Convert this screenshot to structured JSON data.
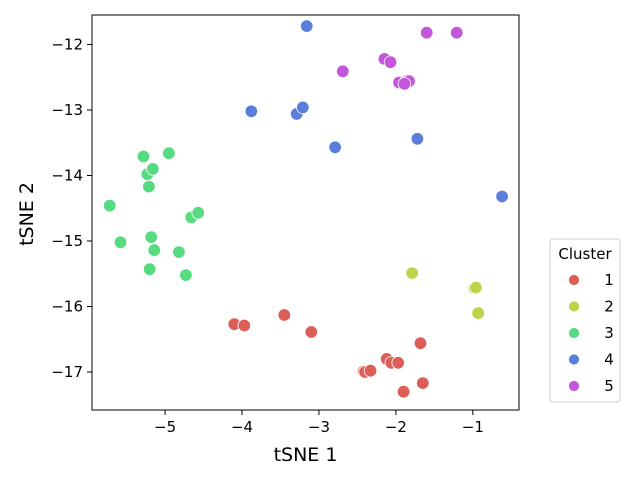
{
  "chart_data": {
    "type": "scatter",
    "xlabel": "tSNE 1",
    "ylabel": "tSNE 2",
    "xlim": [
      -5.95,
      -0.4
    ],
    "ylim": [
      -17.58,
      -11.55
    ],
    "xticks": [
      -5,
      -4,
      -3,
      -2,
      -1
    ],
    "yticks": [
      -12,
      -13,
      -14,
      -15,
      -16,
      -17
    ],
    "grid": false,
    "legend": {
      "title": "Cluster",
      "placement": "outside-right-bottom"
    },
    "series": [
      {
        "name": "1",
        "color": "#db5f57",
        "points": [
          [
            -4.1,
            -16.27
          ],
          [
            -3.97,
            -16.29
          ],
          [
            -3.45,
            -16.13
          ],
          [
            -3.1,
            -16.39
          ],
          [
            -2.42,
            -16.99
          ],
          [
            -2.4,
            -17.0
          ],
          [
            -2.33,
            -16.98
          ],
          [
            -2.12,
            -16.8
          ],
          [
            -2.06,
            -16.86
          ],
          [
            -1.97,
            -16.86
          ],
          [
            -1.9,
            -17.3
          ],
          [
            -1.68,
            -16.56
          ],
          [
            -1.65,
            -17.17
          ]
        ]
      },
      {
        "name": "2",
        "color": "#bbd44b",
        "points": [
          [
            -1.79,
            -15.49
          ],
          [
            -0.98,
            -15.72
          ],
          [
            -0.96,
            -15.71
          ],
          [
            -0.93,
            -16.1
          ]
        ]
      },
      {
        "name": "3",
        "color": "#57db80",
        "points": [
          [
            -5.72,
            -14.46
          ],
          [
            -5.58,
            -15.02
          ],
          [
            -5.28,
            -13.71
          ],
          [
            -5.23,
            -13.98
          ],
          [
            -5.21,
            -14.17
          ],
          [
            -5.2,
            -15.43
          ],
          [
            -5.18,
            -14.94
          ],
          [
            -5.16,
            -13.9
          ],
          [
            -5.14,
            -15.14
          ],
          [
            -4.95,
            -13.66
          ],
          [
            -4.82,
            -15.17
          ],
          [
            -4.73,
            -15.52
          ],
          [
            -4.66,
            -14.64
          ],
          [
            -4.57,
            -14.57
          ]
        ]
      },
      {
        "name": "4",
        "color": "#5a7fdb",
        "points": [
          [
            -3.88,
            -13.02
          ],
          [
            -3.29,
            -13.06
          ],
          [
            -3.21,
            -12.96
          ],
          [
            -3.16,
            -11.72
          ],
          [
            -2.79,
            -13.57
          ],
          [
            -1.72,
            -13.44
          ],
          [
            -0.62,
            -14.32
          ]
        ]
      },
      {
        "name": "5",
        "color": "#c356db",
        "points": [
          [
            -2.69,
            -12.41
          ],
          [
            -2.15,
            -12.22
          ],
          [
            -2.07,
            -12.27
          ],
          [
            -1.96,
            -12.58
          ],
          [
            -1.87,
            -12.57
          ],
          [
            -1.83,
            -12.56
          ],
          [
            -1.89,
            -12.6
          ],
          [
            -1.6,
            -11.82
          ],
          [
            -1.21,
            -11.82
          ]
        ]
      }
    ]
  }
}
